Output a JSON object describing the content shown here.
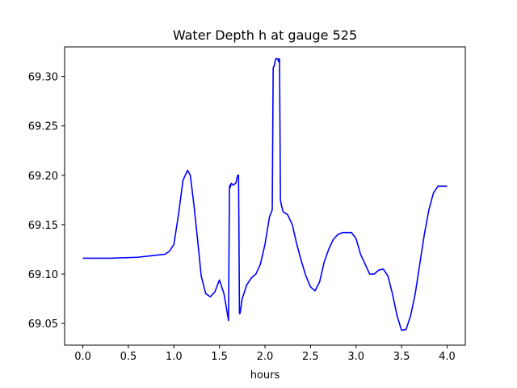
{
  "chart_data": {
    "type": "line",
    "title": "Water Depth h at gauge 525",
    "xlabel": "hours",
    "ylabel": "",
    "xlim": [
      -0.2,
      4.2
    ],
    "ylim": [
      69.028,
      69.33
    ],
    "xticks": [
      0.0,
      0.5,
      1.0,
      1.5,
      2.0,
      2.5,
      3.0,
      3.5,
      4.0
    ],
    "xtick_labels": [
      "0.0",
      "0.5",
      "1.0",
      "1.5",
      "2.0",
      "2.5",
      "3.0",
      "3.5",
      "4.0"
    ],
    "yticks": [
      69.05,
      69.1,
      69.15,
      69.2,
      69.25,
      69.3
    ],
    "ytick_labels": [
      "69.05",
      "69.10",
      "69.15",
      "69.20",
      "69.25",
      "69.30"
    ],
    "grid": false,
    "series": [
      {
        "color": "#0000ff",
        "x": [
          0.0,
          0.3,
          0.6,
          0.8,
          0.9,
          0.95,
          1.0,
          1.05,
          1.1,
          1.15,
          1.18,
          1.22,
          1.26,
          1.3,
          1.35,
          1.4,
          1.45,
          1.5,
          1.55,
          1.6,
          1.61,
          1.615,
          1.62,
          1.63,
          1.65,
          1.68,
          1.7,
          1.71,
          1.72,
          1.725,
          1.73,
          1.75,
          1.8,
          1.85,
          1.9,
          1.95,
          2.0,
          2.05,
          2.08,
          2.09,
          2.095,
          2.1,
          2.11,
          2.12,
          2.14,
          2.15,
          2.16,
          2.17,
          2.18,
          2.2,
          2.25,
          2.3,
          2.35,
          2.4,
          2.45,
          2.5,
          2.55,
          2.6,
          2.65,
          2.7,
          2.75,
          2.8,
          2.85,
          2.9,
          2.95,
          3.0,
          3.05,
          3.1,
          3.15,
          3.2,
          3.25,
          3.3,
          3.35,
          3.4,
          3.45,
          3.5,
          3.55,
          3.6,
          3.65,
          3.7,
          3.75,
          3.8,
          3.85,
          3.9,
          3.95,
          4.0
        ],
        "y": [
          69.116,
          69.116,
          69.117,
          69.119,
          69.12,
          69.123,
          69.13,
          69.16,
          69.195,
          69.205,
          69.2,
          69.17,
          69.135,
          69.098,
          69.08,
          69.077,
          69.082,
          69.094,
          69.08,
          69.053,
          69.188,
          69.19,
          69.188,
          69.192,
          69.19,
          69.192,
          69.2,
          69.2,
          69.06,
          69.06,
          69.062,
          69.075,
          69.089,
          69.096,
          69.1,
          69.11,
          69.13,
          69.158,
          69.165,
          69.308,
          69.31,
          69.31,
          69.315,
          69.318,
          69.318,
          69.315,
          69.318,
          69.175,
          69.17,
          69.163,
          69.16,
          69.15,
          69.13,
          69.113,
          69.098,
          69.087,
          69.083,
          69.092,
          69.112,
          69.125,
          69.135,
          69.14,
          69.142,
          69.142,
          69.142,
          69.136,
          69.12,
          69.11,
          69.1,
          69.1,
          69.104,
          69.105,
          69.098,
          69.08,
          69.058,
          69.043,
          69.044,
          69.058,
          69.08,
          69.11,
          69.14,
          69.165,
          69.182,
          69.189,
          69.189,
          69.189
        ]
      }
    ]
  }
}
